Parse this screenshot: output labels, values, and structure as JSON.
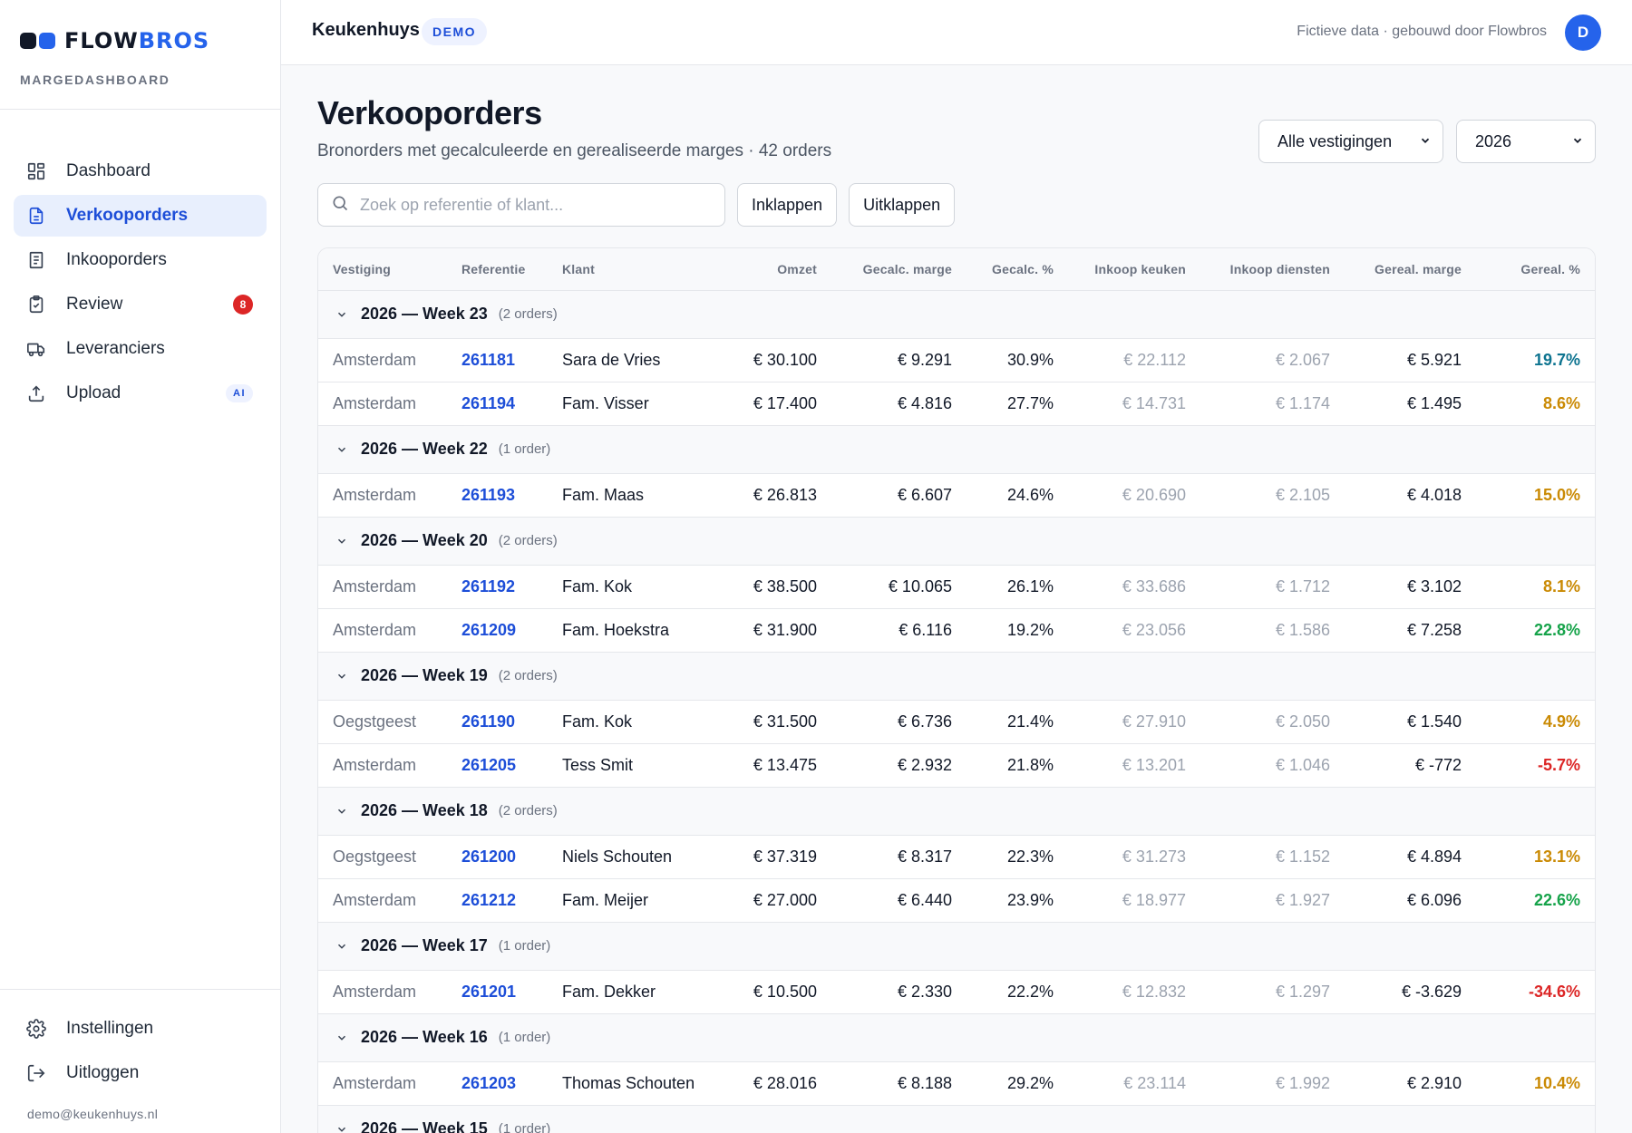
{
  "brand": {
    "logo_part1": "FLOW",
    "logo_part2": "BROS",
    "subtitle": "MARGEDASHBOARD"
  },
  "nav": {
    "items": [
      {
        "label": "Dashboard",
        "icon": "grid-icon",
        "active": false
      },
      {
        "label": "Verkooporders",
        "icon": "document-icon",
        "active": true
      },
      {
        "label": "Inkooporders",
        "icon": "receipt-icon",
        "active": false
      },
      {
        "label": "Review",
        "icon": "clipboard-check-icon",
        "active": false,
        "badge": "8"
      },
      {
        "label": "Leveranciers",
        "icon": "truck-icon",
        "active": false
      },
      {
        "label": "Upload",
        "icon": "upload-icon",
        "active": false,
        "tag": "AI"
      }
    ],
    "bottom": [
      {
        "label": "Instellingen",
        "icon": "gear-icon"
      },
      {
        "label": "Uitloggen",
        "icon": "logout-icon"
      }
    ],
    "user_email": "demo@keukenhuys.nl"
  },
  "topbar": {
    "company": "Keukenhuys",
    "badge": "DEMO",
    "note": "Fictieve data · gebouwd door Flowbros",
    "avatar": "D"
  },
  "page": {
    "title": "Verkooporders",
    "subtitle": "Bronorders met gecalculeerde en gerealiseerde marges · 42 orders",
    "filter_location": "Alle vestigingen",
    "filter_year": "2026",
    "search_placeholder": "Zoek op referentie of klant...",
    "collapse_label": "Inklappen",
    "expand_label": "Uitklappen"
  },
  "table": {
    "columns": [
      "Vestiging",
      "Referentie",
      "Klant",
      "Omzet",
      "Gecalc. marge",
      "Gecalc. %",
      "Inkoop keuken",
      "Inkoop diensten",
      "Gereal. marge",
      "Gereal. %"
    ],
    "groups": [
      {
        "title": "2026 — Week 23",
        "count": "(2 orders)",
        "rows": [
          {
            "loc": "Amsterdam",
            "ref": "261181",
            "klant": "Sara de Vries",
            "omzet": "€ 30.100",
            "gmarge": "€ 9.291",
            "gpct": "30.9%",
            "ikeuken": "€ 22.112",
            "idiensten": "€ 2.067",
            "rmarge": "€ 5.921",
            "rpct": "19.7%",
            "tone": "blue"
          },
          {
            "loc": "Amsterdam",
            "ref": "261194",
            "klant": "Fam. Visser",
            "omzet": "€ 17.400",
            "gmarge": "€ 4.816",
            "gpct": "27.7%",
            "ikeuken": "€ 14.731",
            "idiensten": "€ 1.174",
            "rmarge": "€ 1.495",
            "rpct": "8.6%",
            "tone": "amber"
          }
        ]
      },
      {
        "title": "2026 — Week 22",
        "count": "(1 order)",
        "rows": [
          {
            "loc": "Amsterdam",
            "ref": "261193",
            "klant": "Fam. Maas",
            "omzet": "€ 26.813",
            "gmarge": "€ 6.607",
            "gpct": "24.6%",
            "ikeuken": "€ 20.690",
            "idiensten": "€ 2.105",
            "rmarge": "€ 4.018",
            "rpct": "15.0%",
            "tone": "amber"
          }
        ]
      },
      {
        "title": "2026 — Week 20",
        "count": "(2 orders)",
        "rows": [
          {
            "loc": "Amsterdam",
            "ref": "261192",
            "klant": "Fam. Kok",
            "omzet": "€ 38.500",
            "gmarge": "€ 10.065",
            "gpct": "26.1%",
            "ikeuken": "€ 33.686",
            "idiensten": "€ 1.712",
            "rmarge": "€ 3.102",
            "rpct": "8.1%",
            "tone": "amber"
          },
          {
            "loc": "Amsterdam",
            "ref": "261209",
            "klant": "Fam. Hoekstra",
            "omzet": "€ 31.900",
            "gmarge": "€ 6.116",
            "gpct": "19.2%",
            "ikeuken": "€ 23.056",
            "idiensten": "€ 1.586",
            "rmarge": "€ 7.258",
            "rpct": "22.8%",
            "tone": "green"
          }
        ]
      },
      {
        "title": "2026 — Week 19",
        "count": "(2 orders)",
        "rows": [
          {
            "loc": "Oegstgeest",
            "ref": "261190",
            "klant": "Fam. Kok",
            "omzet": "€ 31.500",
            "gmarge": "€ 6.736",
            "gpct": "21.4%",
            "ikeuken": "€ 27.910",
            "idiensten": "€ 2.050",
            "rmarge": "€ 1.540",
            "rpct": "4.9%",
            "tone": "amber"
          },
          {
            "loc": "Amsterdam",
            "ref": "261205",
            "klant": "Tess Smit",
            "omzet": "€ 13.475",
            "gmarge": "€ 2.932",
            "gpct": "21.8%",
            "ikeuken": "€ 13.201",
            "idiensten": "€ 1.046",
            "rmarge": "€ -772",
            "rpct": "-5.7%",
            "tone": "red"
          }
        ]
      },
      {
        "title": "2026 — Week 18",
        "count": "(2 orders)",
        "rows": [
          {
            "loc": "Oegstgeest",
            "ref": "261200",
            "klant": "Niels Schouten",
            "omzet": "€ 37.319",
            "gmarge": "€ 8.317",
            "gpct": "22.3%",
            "ikeuken": "€ 31.273",
            "idiensten": "€ 1.152",
            "rmarge": "€ 4.894",
            "rpct": "13.1%",
            "tone": "amber"
          },
          {
            "loc": "Amsterdam",
            "ref": "261212",
            "klant": "Fam. Meijer",
            "omzet": "€ 27.000",
            "gmarge": "€ 6.440",
            "gpct": "23.9%",
            "ikeuken": "€ 18.977",
            "idiensten": "€ 1.927",
            "rmarge": "€ 6.096",
            "rpct": "22.6%",
            "tone": "green"
          }
        ]
      },
      {
        "title": "2026 — Week 17",
        "count": "(1 order)",
        "rows": [
          {
            "loc": "Amsterdam",
            "ref": "261201",
            "klant": "Fam. Dekker",
            "omzet": "€ 10.500",
            "gmarge": "€ 2.330",
            "gpct": "22.2%",
            "ikeuken": "€ 12.832",
            "idiensten": "€ 1.297",
            "rmarge": "€ -3.629",
            "rpct": "-34.6%",
            "tone": "red"
          }
        ]
      },
      {
        "title": "2026 — Week 16",
        "count": "(1 order)",
        "rows": [
          {
            "loc": "Amsterdam",
            "ref": "261203",
            "klant": "Thomas Schouten",
            "omzet": "€ 28.016",
            "gmarge": "€ 8.188",
            "gpct": "29.2%",
            "ikeuken": "€ 23.114",
            "idiensten": "€ 1.992",
            "rmarge": "€ 2.910",
            "rpct": "10.4%",
            "tone": "amber"
          }
        ]
      },
      {
        "title": "2026 — Week 15",
        "count": "(1 order)",
        "rows": []
      }
    ]
  },
  "colors": {
    "accent": "#2563eb",
    "positive": "#16a34a",
    "warning": "#ca8a04",
    "negative": "#dc2626",
    "info": "#0e7490"
  }
}
